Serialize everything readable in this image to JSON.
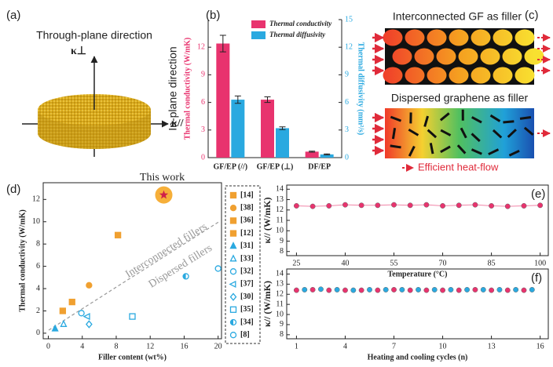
{
  "panels": {
    "a": {
      "label": "(a)",
      "title": "Through-plane direction",
      "k_perp": "κ⊥",
      "k_par": "κ//"
    },
    "c": {
      "label": "(c)",
      "top_title": "Interconnected GF as filler",
      "bottom_title": "Dispersed graphene as filler",
      "legend": "Efficient heat-flow"
    }
  },
  "chart_data": [
    {
      "panel_label": "(b)",
      "type": "bar",
      "categories": [
        "GF/EP (//)",
        "GF/EP (⊥)",
        "DF/EP"
      ],
      "series": [
        {
          "name": "Thermal conductivity",
          "color": "#e8336e",
          "values": [
            12.4,
            6.3,
            0.65
          ],
          "errors": [
            0.9,
            0.3,
            0.05
          ]
        },
        {
          "name": "Thermal diffusivity",
          "color": "#2aa9e0",
          "values": [
            6.3,
            3.2,
            0.35
          ],
          "errors": [
            0.4,
            0.15,
            0.05
          ],
          "axis": "y2"
        }
      ],
      "ylabel": "Thermal conductivity (W/mK)",
      "y2label": "Thermal diffusivity (mm²/s)",
      "side_label": "In-plane direction",
      "ylim": [
        0,
        15
      ],
      "yticks": [
        0,
        3,
        6,
        9,
        12
      ],
      "y2lim": [
        0,
        15
      ],
      "y2ticks": [
        0,
        3,
        6,
        9,
        12,
        15
      ],
      "legend": "top"
    },
    {
      "panel_label": "(d)",
      "type": "scatter",
      "xlabel": "Filler content (wt%)",
      "ylabel": "Thermal conductivity (W/mK)",
      "xlim": [
        -0.6,
        20.4
      ],
      "xticks": [
        0,
        4,
        8,
        12,
        16,
        20
      ],
      "ylim": [
        -0.5,
        13.5
      ],
      "yticks": [
        0,
        2,
        4,
        6,
        8,
        10,
        12
      ],
      "highlight": {
        "label": "This work",
        "x": 13.6,
        "y": 12.4,
        "color": "#f5a623",
        "star_color": "#d0204a"
      },
      "annotations": [
        "Interconnected fillers",
        "Dispersed fillers"
      ],
      "series": [
        {
          "name": "[14]",
          "color": "#f0a030",
          "marker": "square",
          "filled": true,
          "x": [
            1.7
          ],
          "values": [
            2.0
          ]
        },
        {
          "name": "[38]",
          "color": "#f0a030",
          "marker": "circle",
          "filled": true,
          "x": [
            4.8
          ],
          "values": [
            4.3
          ]
        },
        {
          "name": "[36]",
          "color": "#f0a030",
          "marker": "square",
          "filled": true,
          "x": [
            2.8
          ],
          "values": [
            2.8
          ]
        },
        {
          "name": "[12]",
          "color": "#f0a030",
          "marker": "square",
          "filled": true,
          "x": [
            8.2
          ],
          "values": [
            8.8
          ]
        },
        {
          "name": "[31]",
          "color": "#2aa9e0",
          "marker": "triangle",
          "filled": true,
          "x": [
            0.8
          ],
          "values": [
            0.4
          ]
        },
        {
          "name": "[33]",
          "color": "#2aa9e0",
          "marker": "triangle",
          "filled": false,
          "x": [
            1.8
          ],
          "values": [
            0.8
          ]
        },
        {
          "name": "[32]",
          "color": "#2aa9e0",
          "marker": "circle",
          "filled": false,
          "x": [
            3.9
          ],
          "values": [
            1.8
          ]
        },
        {
          "name": "[37]",
          "color": "#2aa9e0",
          "marker": "triangle-left",
          "filled": false,
          "x": [
            4.6
          ],
          "values": [
            1.5
          ]
        },
        {
          "name": "[30]",
          "color": "#2aa9e0",
          "marker": "diamond",
          "filled": false,
          "x": [
            4.8
          ],
          "values": [
            0.8
          ]
        },
        {
          "name": "[35]",
          "color": "#2aa9e0",
          "marker": "square",
          "filled": false,
          "x": [
            9.9
          ],
          "values": [
            1.5
          ]
        },
        {
          "name": "[34]",
          "color": "#2aa9e0",
          "marker": "half",
          "filled": false,
          "x": [
            16.2
          ],
          "values": [
            5.1
          ]
        },
        {
          "name": "[8]",
          "color": "#2aa9e0",
          "marker": "circle",
          "filled": false,
          "x": [
            20
          ],
          "values": [
            5.8
          ]
        }
      ]
    },
    {
      "panel_label": "(e)",
      "type": "line",
      "xlabel": "Temperature (°C)",
      "ylabel": "κ// (W/mK)",
      "xlim": [
        22,
        102.5
      ],
      "xticks": [
        25,
        40,
        55,
        70,
        85,
        100
      ],
      "ylim": [
        7.6,
        14.4
      ],
      "yticks": [
        8,
        9,
        10,
        11,
        12,
        13,
        14
      ],
      "series": [
        {
          "color": "#e8336e",
          "marker": "circle",
          "filled": true,
          "x": [
            25,
            30,
            35,
            40,
            45,
            50,
            55,
            60,
            65,
            70,
            75,
            80,
            85,
            90,
            95,
            100
          ],
          "values": [
            12.4,
            12.35,
            12.4,
            12.5,
            12.45,
            12.45,
            12.5,
            12.45,
            12.5,
            12.4,
            12.45,
            12.5,
            12.4,
            12.35,
            12.4,
            12.45
          ]
        }
      ]
    },
    {
      "panel_label": "(f)",
      "type": "scatter",
      "xlabel": "Heating and cooling cycles (n)",
      "ylabel": "κ// (W/mK)",
      "xlim": [
        0.4,
        16.5
      ],
      "xticks": [
        1,
        4,
        7,
        10,
        13,
        16
      ],
      "ylim": [
        7.6,
        14.5
      ],
      "yticks": [
        8,
        9,
        10,
        11,
        12,
        13,
        14
      ],
      "series": [
        {
          "color": "#e8336e",
          "marker": "circle",
          "filled": true,
          "x": [
            1,
            2,
            3,
            4,
            5,
            6,
            7,
            8,
            9,
            10,
            11,
            12,
            13,
            14,
            15
          ],
          "values": [
            12.4,
            12.45,
            12.4,
            12.4,
            12.4,
            12.4,
            12.45,
            12.4,
            12.4,
            12.4,
            12.4,
            12.45,
            12.4,
            12.4,
            12.4
          ]
        },
        {
          "color": "#2aa9e0",
          "marker": "circle",
          "filled": true,
          "x": [
            1.5,
            2.5,
            3.5,
            4.5,
            5.5,
            6.5,
            7.5,
            8.5,
            9.5,
            10.5,
            11.5,
            12.5,
            13.5,
            14.5,
            15.5
          ],
          "values": [
            12.45,
            12.5,
            12.45,
            12.4,
            12.45,
            12.45,
            12.45,
            12.45,
            12.45,
            12.45,
            12.45,
            12.45,
            12.45,
            12.45,
            12.45
          ]
        }
      ]
    }
  ]
}
